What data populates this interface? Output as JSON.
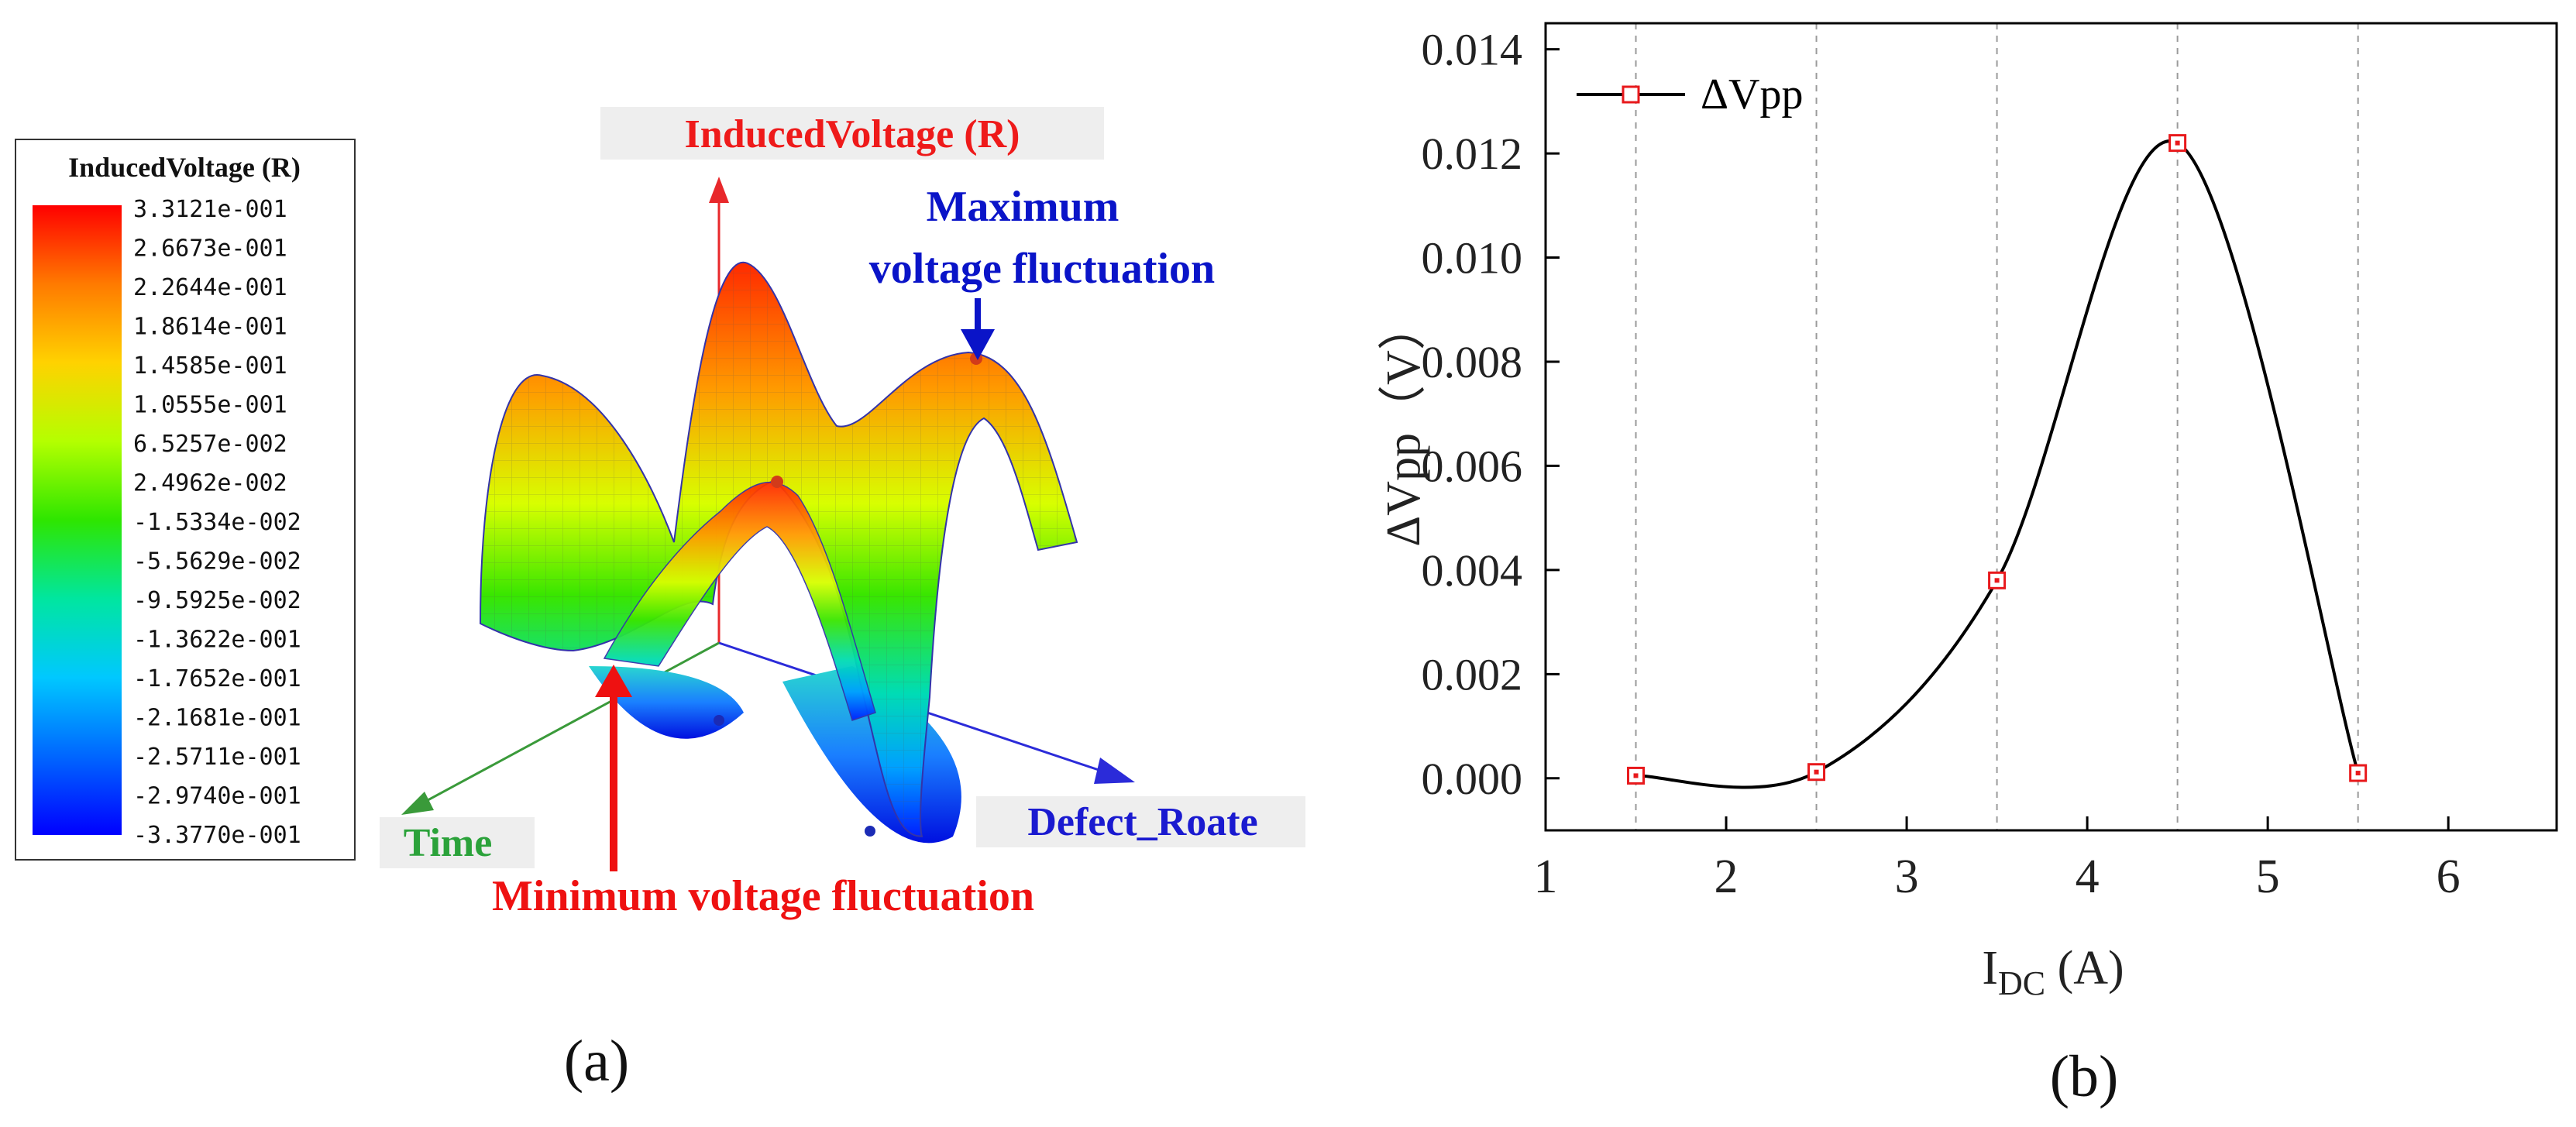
{
  "panel_a": {
    "label": "(a)",
    "colorbar": {
      "title": "InducedVoltage (R)",
      "ticks": [
        "3.3121e-001",
        "2.6673e-001",
        "2.2644e-001",
        "1.8614e-001",
        "1.4585e-001",
        "1.0555e-001",
        "6.5257e-002",
        "2.4962e-002",
        "-1.5334e-002",
        "-5.5629e-002",
        "-9.5925e-002",
        "-1.3622e-001",
        "-1.7652e-001",
        "-2.1681e-001",
        "-2.5711e-001",
        "-2.9740e-001",
        "-3.3770e-001"
      ],
      "colors": [
        "#ff0000",
        "#ff7a00",
        "#ffd200",
        "#b4ff00",
        "#2ee600",
        "#00e6a0",
        "#00c8ff",
        "#0066ff",
        "#0000ff"
      ]
    },
    "axes": {
      "z_label": "InducedVoltage (R)",
      "x_label": "Time",
      "y_label": "Defect_Roate"
    },
    "annotations": {
      "max_line1": "Maximum",
      "max_line2": "voltage fluctuation",
      "min": "Minimum voltage fluctuation"
    },
    "colors": {
      "z_axis": "#e8282b",
      "x_axis": "#3a9a3a",
      "y_axis": "#2b2bd9",
      "max_text": "#0a14c8",
      "min_text": "#ee1111",
      "axis_label_bg": "#eeeeee"
    }
  },
  "panel_b": {
    "label": "(b)",
    "chart_data": {
      "type": "line",
      "title": "",
      "xlabel_main": "I",
      "xlabel_sub": "DC",
      "xlabel_unit": " (A)",
      "ylabel": "ΔVpp（V）",
      "xlim": [
        1,
        6.6
      ],
      "ylim": [
        -0.001,
        0.0145
      ],
      "x_ticks": [
        1,
        2,
        3,
        4,
        5,
        6
      ],
      "y_ticks": [
        0.0,
        0.002,
        0.004,
        0.006,
        0.008,
        0.01,
        0.012,
        0.014
      ],
      "y_tick_labels": [
        "0.000",
        "0.002",
        "0.004",
        "0.006",
        "0.008",
        "0.010",
        "0.012",
        "0.014"
      ],
      "x_tick_labels": [
        "1",
        "2",
        "3",
        "4",
        "5",
        "6"
      ],
      "grid_x": [
        1.5,
        2.5,
        3.5,
        4.5,
        5.5
      ],
      "legend": "ΔVpp",
      "legend_position": "top-left",
      "series": [
        {
          "name": "ΔVpp",
          "x": [
            1.5,
            2.5,
            3.5,
            4.5,
            5.5
          ],
          "y": [
            5e-05,
            0.00012,
            0.0038,
            0.0122,
            0.0001
          ]
        }
      ],
      "line_color": "#000000",
      "marker_color": "#e8191c"
    }
  }
}
